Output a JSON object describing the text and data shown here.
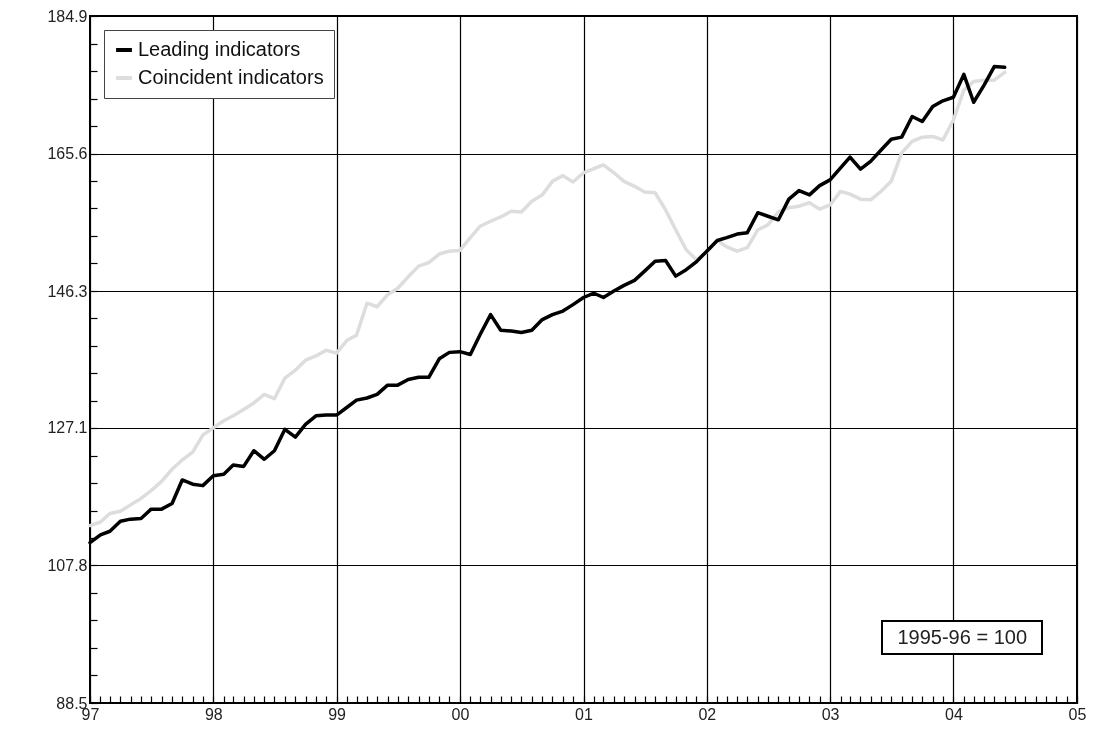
{
  "chart_data": {
    "type": "line",
    "x": [
      "1997-01",
      "1997-02",
      "1997-03",
      "1997-04",
      "1997-05",
      "1997-06",
      "1997-07",
      "1997-08",
      "1997-09",
      "1997-10",
      "1997-11",
      "1997-12",
      "1998-01",
      "1998-02",
      "1998-03",
      "1998-04",
      "1998-05",
      "1998-06",
      "1998-07",
      "1998-08",
      "1998-09",
      "1998-10",
      "1998-11",
      "1998-12",
      "1999-01",
      "1999-02",
      "1999-03",
      "1999-04",
      "1999-05",
      "1999-06",
      "1999-07",
      "1999-08",
      "1999-09",
      "1999-10",
      "1999-11",
      "1999-12",
      "2000-01",
      "2000-02",
      "2000-03",
      "2000-04",
      "2000-05",
      "2000-06",
      "2000-07",
      "2000-08",
      "2000-09",
      "2000-10",
      "2000-11",
      "2000-12",
      "2001-01",
      "2001-02",
      "2001-03",
      "2001-04",
      "2001-05",
      "2001-06",
      "2001-07",
      "2001-08",
      "2001-09",
      "2001-10",
      "2001-11",
      "2001-12",
      "2002-01",
      "2002-02",
      "2002-03",
      "2002-04",
      "2002-05",
      "2002-06",
      "2002-07",
      "2002-08",
      "2002-09",
      "2002-10",
      "2002-11",
      "2002-12",
      "2003-01",
      "2003-02",
      "2003-03",
      "2003-04",
      "2003-05",
      "2003-06",
      "2003-07",
      "2003-08",
      "2003-09",
      "2003-10",
      "2003-11",
      "2003-12",
      "2004-01",
      "2004-02",
      "2004-03",
      "2004-04",
      "2004-05",
      "2004-06"
    ],
    "series": [
      {
        "name": "Leading indicators",
        "color": "#000000",
        "values": [
          111.0,
          112.1,
          112.6,
          114.0,
          114.3,
          114.4,
          115.7,
          115.7,
          116.5,
          119.8,
          119.2,
          119.0,
          120.4,
          120.6,
          121.9,
          121.7,
          123.9,
          122.7,
          123.9,
          126.9,
          125.8,
          127.6,
          128.8,
          128.9,
          128.9,
          130.0,
          131.0,
          131.3,
          131.8,
          133.1,
          133.1,
          133.9,
          134.2,
          134.2,
          136.8,
          137.7,
          137.8,
          137.4,
          140.2,
          143.0,
          140.8,
          140.7,
          140.5,
          140.8,
          142.3,
          143.0,
          143.5,
          144.4,
          145.4,
          146.0,
          145.4,
          146.3,
          147.1,
          147.8,
          149.1,
          150.5,
          150.6,
          148.4,
          149.3,
          150.4,
          151.9,
          153.4,
          153.8,
          154.3,
          154.5,
          157.3,
          156.8,
          156.3,
          159.2,
          160.4,
          159.8,
          161.1,
          161.9,
          163.6,
          165.1,
          163.4,
          164.5,
          166.1,
          167.6,
          167.9,
          170.8,
          170.1,
          172.2,
          173.0,
          173.5,
          176.7,
          172.8,
          175.2,
          177.8,
          177.7
        ]
      },
      {
        "name": "Coincident indicators",
        "color": "#dddddd",
        "values": [
          113.4,
          113.9,
          115.1,
          115.4,
          116.3,
          117.2,
          118.3,
          119.6,
          121.3,
          122.6,
          123.7,
          126.1,
          127.1,
          128.1,
          128.8,
          129.7,
          130.6,
          131.8,
          131.2,
          134.1,
          135.2,
          136.6,
          137.2,
          138.0,
          137.6,
          139.4,
          140.1,
          144.6,
          144.1,
          145.8,
          146.7,
          148.3,
          149.8,
          150.3,
          151.5,
          151.9,
          152.0,
          153.8,
          155.4,
          156.1,
          156.7,
          157.5,
          157.4,
          158.9,
          159.8,
          161.7,
          162.5,
          161.6,
          162.9,
          163.5,
          164.0,
          162.9,
          161.7,
          161.0,
          160.2,
          160.1,
          157.7,
          154.9,
          152.1,
          150.7,
          151.8,
          153.4,
          152.5,
          151.9,
          152.4,
          154.9,
          155.6,
          157.4,
          158.0,
          158.2,
          158.7,
          157.8,
          158.4,
          160.3,
          159.9,
          159.2,
          159.1,
          160.3,
          161.7,
          165.7,
          167.3,
          167.9,
          168.0,
          167.5,
          170.3,
          174.5,
          175.7,
          175.9,
          175.9,
          177.0
        ]
      }
    ],
    "xlim": [
      "1997-01",
      "2005-01"
    ],
    "xticks": [
      {
        "value": "1997-01",
        "label": "97"
      },
      {
        "value": "1997-02",
        "label": null
      },
      {
        "value": "1997-03",
        "label": null
      },
      {
        "value": "1997-04",
        "label": null
      },
      {
        "value": "1997-05",
        "label": null
      },
      {
        "value": "1997-06",
        "label": null
      },
      {
        "value": "1997-07",
        "label": null
      },
      {
        "value": "1997-08",
        "label": null
      },
      {
        "value": "1997-09",
        "label": null
      },
      {
        "value": "1997-10",
        "label": null
      },
      {
        "value": "1997-11",
        "label": null
      },
      {
        "value": "1997-12",
        "label": null
      },
      {
        "value": "1998-01",
        "label": "98"
      },
      {
        "value": "1998-02",
        "label": null
      },
      {
        "value": "1998-03",
        "label": null
      },
      {
        "value": "1998-04",
        "label": null
      },
      {
        "value": "1998-05",
        "label": null
      },
      {
        "value": "1998-06",
        "label": null
      },
      {
        "value": "1998-07",
        "label": null
      },
      {
        "value": "1998-08",
        "label": null
      },
      {
        "value": "1998-09",
        "label": null
      },
      {
        "value": "1998-10",
        "label": null
      },
      {
        "value": "1998-11",
        "label": null
      },
      {
        "value": "1998-12",
        "label": null
      },
      {
        "value": "1999-01",
        "label": "99"
      },
      {
        "value": "1999-02",
        "label": null
      },
      {
        "value": "1999-03",
        "label": null
      },
      {
        "value": "1999-04",
        "label": null
      },
      {
        "value": "1999-05",
        "label": null
      },
      {
        "value": "1999-06",
        "label": null
      },
      {
        "value": "1999-07",
        "label": null
      },
      {
        "value": "1999-08",
        "label": null
      },
      {
        "value": "1999-09",
        "label": null
      },
      {
        "value": "1999-10",
        "label": null
      },
      {
        "value": "1999-11",
        "label": null
      },
      {
        "value": "1999-12",
        "label": null
      },
      {
        "value": "2000-01",
        "label": "00"
      },
      {
        "value": "2000-02",
        "label": null
      },
      {
        "value": "2000-03",
        "label": null
      },
      {
        "value": "2000-04",
        "label": null
      },
      {
        "value": "2000-05",
        "label": null
      },
      {
        "value": "2000-06",
        "label": null
      },
      {
        "value": "2000-07",
        "label": null
      },
      {
        "value": "2000-08",
        "label": null
      },
      {
        "value": "2000-09",
        "label": null
      },
      {
        "value": "2000-10",
        "label": null
      },
      {
        "value": "2000-11",
        "label": null
      },
      {
        "value": "2000-12",
        "label": null
      },
      {
        "value": "2001-01",
        "label": "01"
      },
      {
        "value": "2001-02",
        "label": null
      },
      {
        "value": "2001-03",
        "label": null
      },
      {
        "value": "2001-04",
        "label": null
      },
      {
        "value": "2001-05",
        "label": null
      },
      {
        "value": "2001-06",
        "label": null
      },
      {
        "value": "2001-07",
        "label": null
      },
      {
        "value": "2001-08",
        "label": null
      },
      {
        "value": "2001-09",
        "label": null
      },
      {
        "value": "2001-10",
        "label": null
      },
      {
        "value": "2001-11",
        "label": null
      },
      {
        "value": "2001-12",
        "label": null
      },
      {
        "value": "2002-01",
        "label": "02"
      },
      {
        "value": "2002-02",
        "label": null
      },
      {
        "value": "2002-03",
        "label": null
      },
      {
        "value": "2002-04",
        "label": null
      },
      {
        "value": "2002-05",
        "label": null
      },
      {
        "value": "2002-06",
        "label": null
      },
      {
        "value": "2002-07",
        "label": null
      },
      {
        "value": "2002-08",
        "label": null
      },
      {
        "value": "2002-09",
        "label": null
      },
      {
        "value": "2002-10",
        "label": null
      },
      {
        "value": "2002-11",
        "label": null
      },
      {
        "value": "2002-12",
        "label": null
      },
      {
        "value": "2003-01",
        "label": "03"
      },
      {
        "value": "2003-02",
        "label": null
      },
      {
        "value": "2003-03",
        "label": null
      },
      {
        "value": "2003-04",
        "label": null
      },
      {
        "value": "2003-05",
        "label": null
      },
      {
        "value": "2003-06",
        "label": null
      },
      {
        "value": "2003-07",
        "label": null
      },
      {
        "value": "2003-08",
        "label": null
      },
      {
        "value": "2003-09",
        "label": null
      },
      {
        "value": "2003-10",
        "label": null
      },
      {
        "value": "2003-11",
        "label": null
      },
      {
        "value": "2003-12",
        "label": null
      },
      {
        "value": "2004-01",
        "label": "04"
      },
      {
        "value": "2004-02",
        "label": null
      },
      {
        "value": "2004-03",
        "label": null
      },
      {
        "value": "2004-04",
        "label": null
      },
      {
        "value": "2004-05",
        "label": null
      },
      {
        "value": "2004-06",
        "label": null
      },
      {
        "value": "2004-07",
        "label": null
      },
      {
        "value": "2004-08",
        "label": null
      },
      {
        "value": "2004-09",
        "label": null
      },
      {
        "value": "2004-10",
        "label": null
      },
      {
        "value": "2004-11",
        "label": null
      },
      {
        "value": "2004-12",
        "label": null
      },
      {
        "value": "2005-01",
        "label": "05"
      }
    ],
    "ylim": [
      88.5,
      184.9
    ],
    "yticks": [
      88.5,
      {
        "value": 92.4,
        "label": null
      },
      {
        "value": 96.2,
        "label": null
      },
      {
        "value": 100.1,
        "label": null
      },
      {
        "value": 103.9,
        "label": null
      },
      107.8,
      {
        "value": 111.7,
        "label": null
      },
      {
        "value": 115.5,
        "label": null
      },
      {
        "value": 119.4,
        "label": null
      },
      {
        "value": 123.2,
        "label": null
      },
      127.1,
      {
        "value": 130.9,
        "label": null
      },
      {
        "value": 134.8,
        "label": null
      },
      {
        "value": 138.6,
        "label": null
      },
      {
        "value": 142.5,
        "label": null
      },
      146.3,
      {
        "value": 150.2,
        "label": null
      },
      {
        "value": 154.0,
        "label": null
      },
      {
        "value": 157.9,
        "label": null
      },
      {
        "value": 161.7,
        "label": null
      },
      165.6,
      {
        "value": 169.5,
        "label": null
      },
      {
        "value": 173.3,
        "label": null
      },
      {
        "value": 177.2,
        "label": null
      },
      {
        "value": 181.0,
        "label": null
      },
      184.9
    ],
    "grid": true,
    "legend": "top left",
    "line_style": "solid",
    "annotations": [
      "1995-96 = 100"
    ]
  }
}
